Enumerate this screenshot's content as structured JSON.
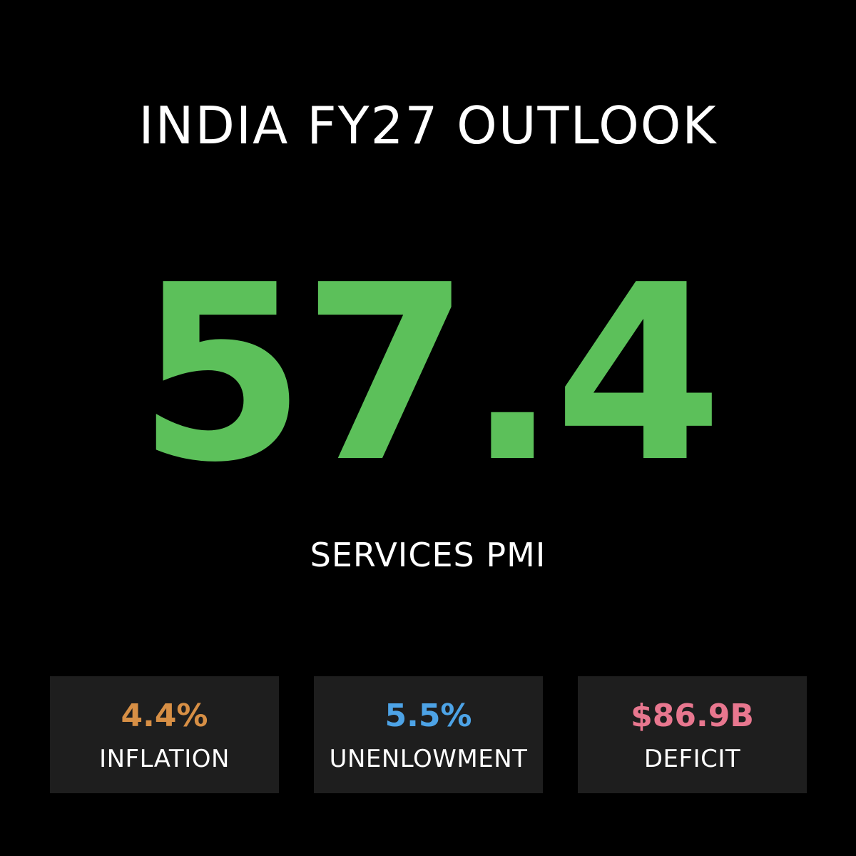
{
  "header": {
    "title": "INDIA FY27 OUTLOOK"
  },
  "hero": {
    "value": "57.4",
    "label": "SERVICES PMI",
    "color": "#5cc05a"
  },
  "cards": [
    {
      "value": "4.4%",
      "label": "INFLATION",
      "color": "#d78f45"
    },
    {
      "value": "5.5%",
      "label": "UNENLOWMENT",
      "color": "#4da3e6"
    },
    {
      "value": "$86.9B",
      "label": "DEFICIT",
      "color": "#e8778f"
    }
  ]
}
